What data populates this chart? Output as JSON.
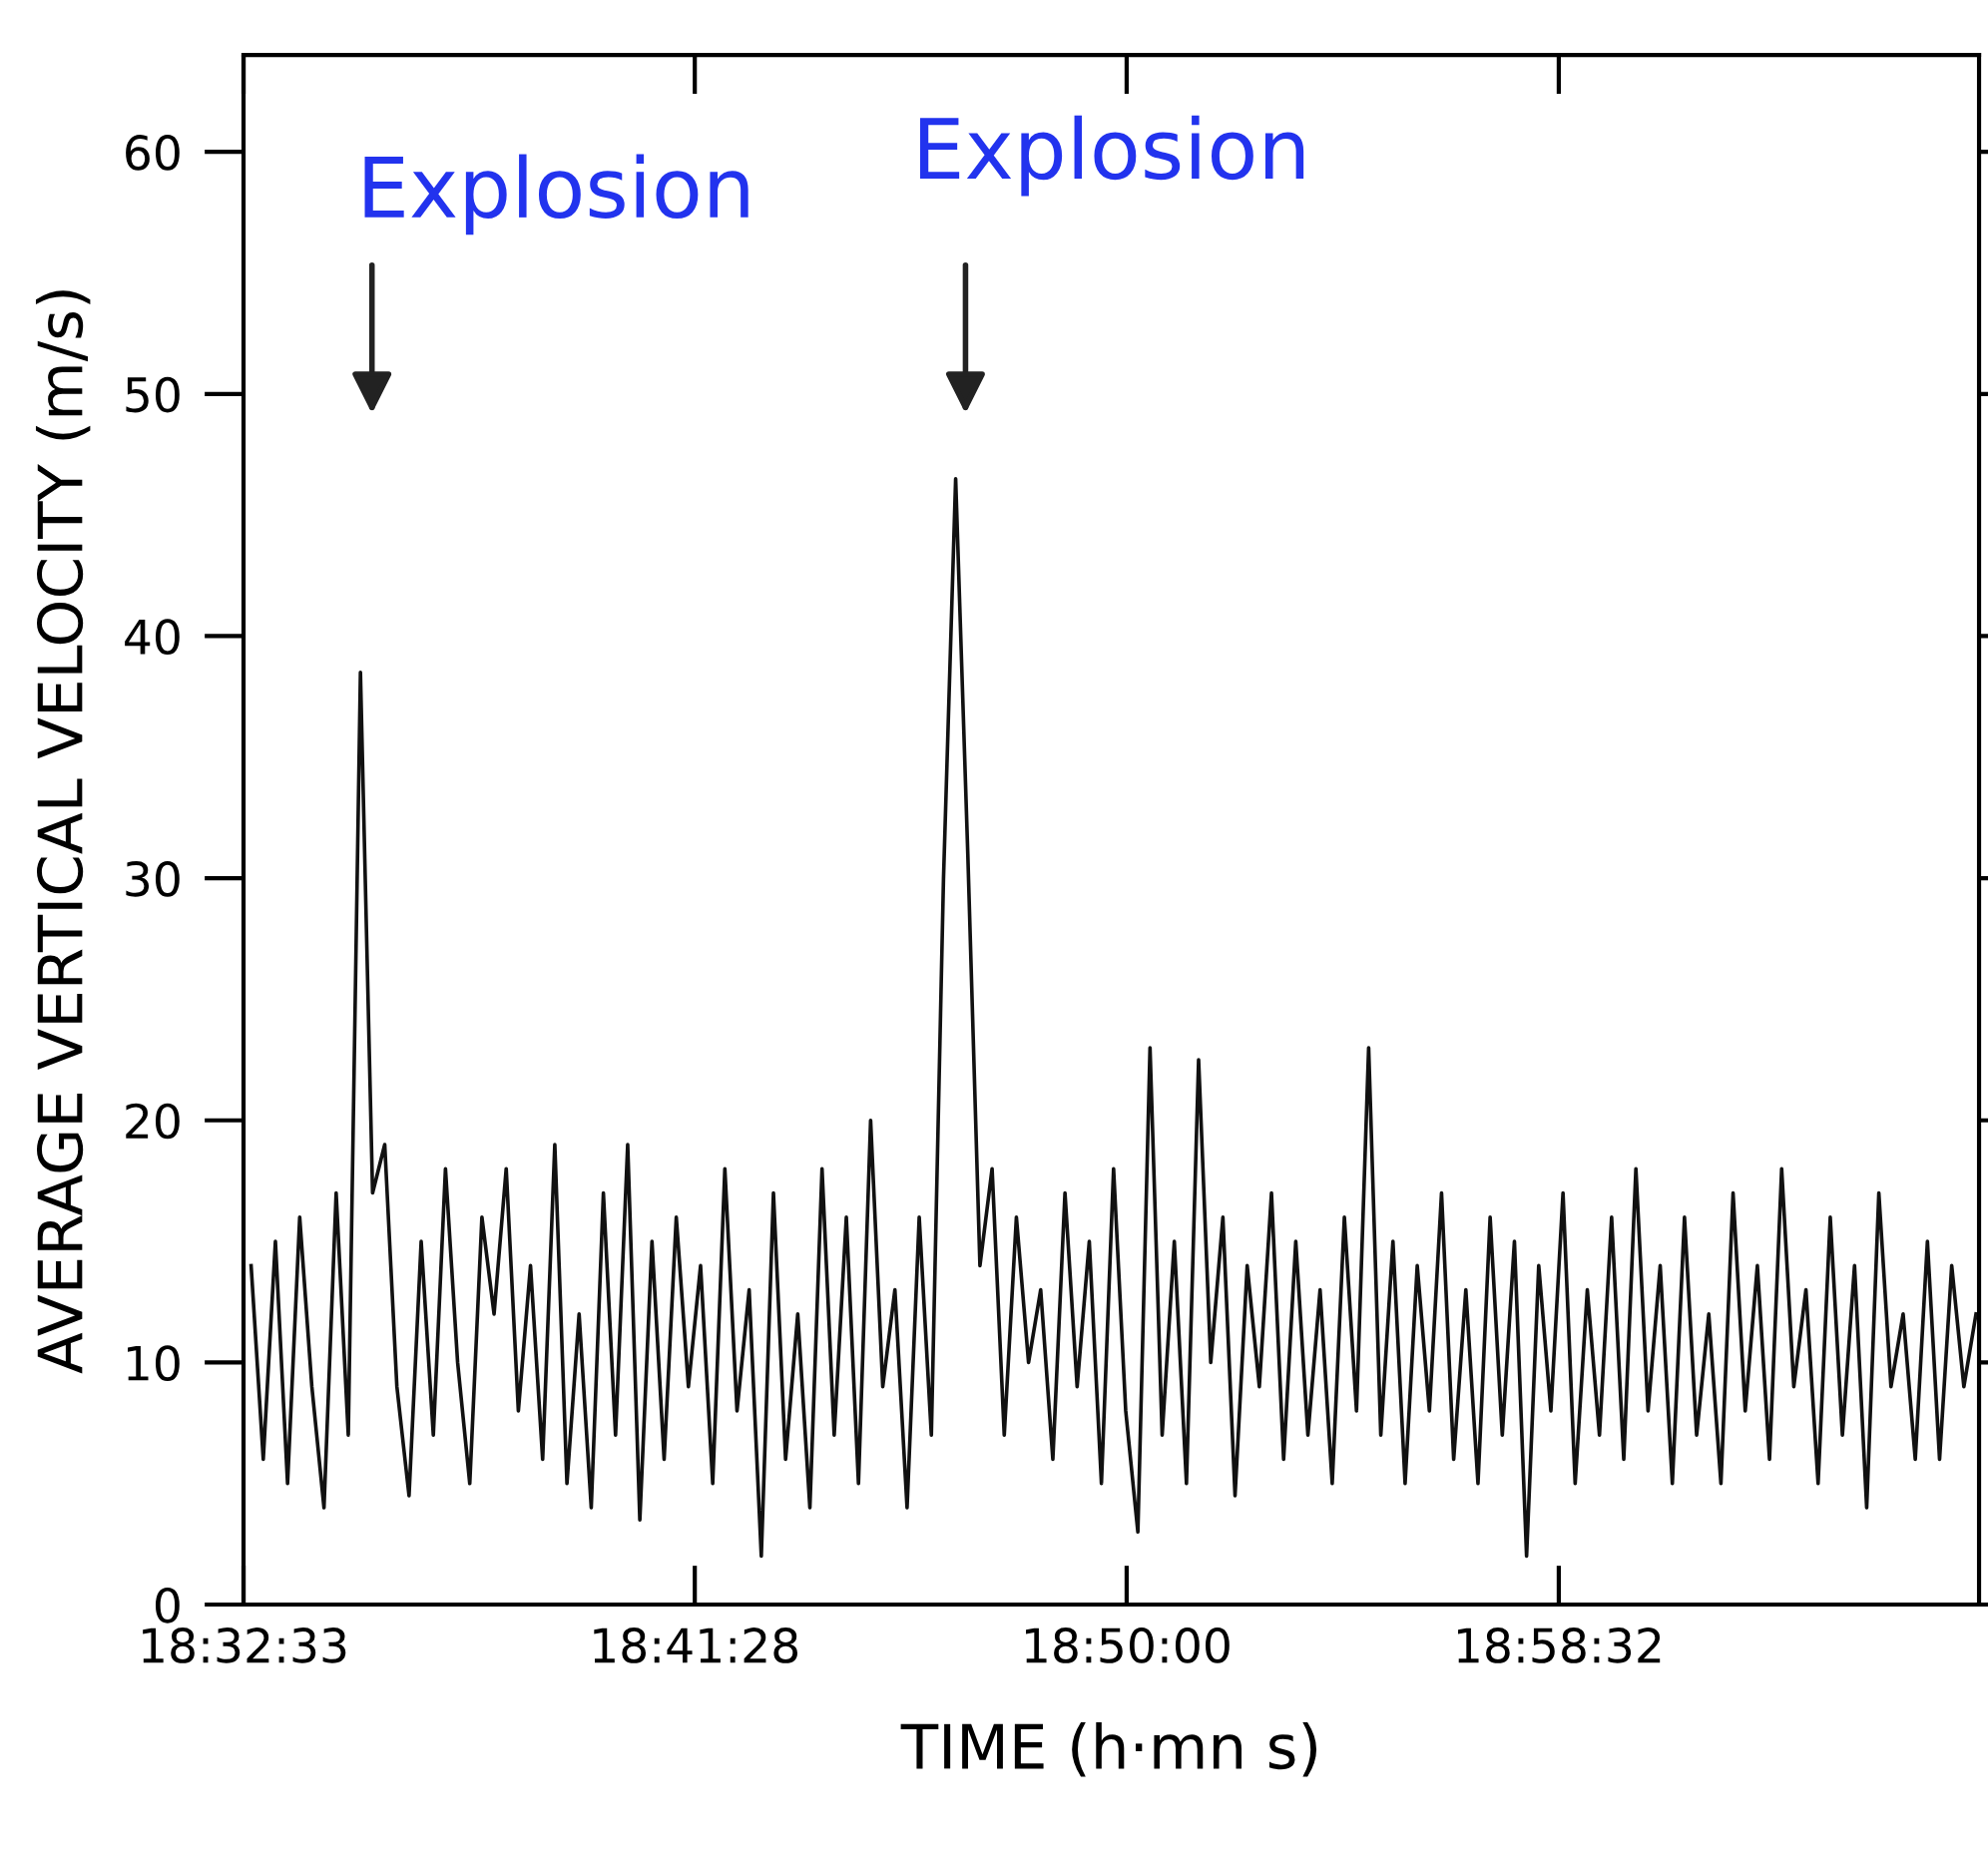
{
  "chart_data": {
    "type": "line",
    "xlabel": "TIME (h·mn s)",
    "ylabel": "AVERAGE VERTICAL VELOCITY (m/s)",
    "xlim": [
      18.5425,
      19.114
    ],
    "ylim": [
      0,
      64
    ],
    "xticks": [
      {
        "value": 18.5425,
        "label": "18:32:33"
      },
      {
        "value": 18.6911,
        "label": "18:41:28"
      },
      {
        "value": 18.8333,
        "label": "18:50:00"
      },
      {
        "value": 18.9756,
        "label": "18:58:32"
      }
    ],
    "yticks": [
      0,
      10,
      20,
      30,
      40,
      50,
      60
    ],
    "grid": false,
    "marker": "none",
    "line_style": "solid",
    "annotations": [
      "Explosion",
      "Explosion"
    ],
    "series": [
      {
        "color": "#111111",
        "x": [
          18.545,
          18.549,
          18.553,
          18.557,
          18.561,
          18.565,
          18.569,
          18.573,
          18.577,
          18.581,
          18.585,
          18.589,
          18.593,
          18.597,
          18.601,
          18.605,
          18.609,
          18.613,
          18.617,
          18.621,
          18.625,
          18.629,
          18.633,
          18.637,
          18.641,
          18.645,
          18.649,
          18.653,
          18.657,
          18.661,
          18.665,
          18.669,
          18.673,
          18.677,
          18.681,
          18.685,
          18.689,
          18.693,
          18.697,
          18.701,
          18.705,
          18.709,
          18.713,
          18.717,
          18.721,
          18.725,
          18.729,
          18.733,
          18.737,
          18.741,
          18.745,
          18.749,
          18.753,
          18.757,
          18.761,
          18.765,
          18.769,
          18.773,
          18.777,
          18.781,
          18.785,
          18.789,
          18.793,
          18.797,
          18.801,
          18.805,
          18.809,
          18.813,
          18.817,
          18.821,
          18.825,
          18.829,
          18.833,
          18.837,
          18.841,
          18.845,
          18.849,
          18.853,
          18.857,
          18.861,
          18.865,
          18.869,
          18.873,
          18.877,
          18.881,
          18.885,
          18.889,
          18.893,
          18.897,
          18.901,
          18.905,
          18.909,
          18.913,
          18.917,
          18.921,
          18.925,
          18.929,
          18.933,
          18.937,
          18.941,
          18.945,
          18.949,
          18.953,
          18.957,
          18.961,
          18.965,
          18.969,
          18.973,
          18.977,
          18.981,
          18.985,
          18.989,
          18.993,
          18.997,
          19.001,
          19.005,
          19.009,
          19.013,
          19.017,
          19.021,
          19.025,
          19.029,
          19.033,
          19.037,
          19.041,
          19.045,
          19.049,
          19.053,
          19.057,
          19.061,
          19.065,
          19.069,
          19.073,
          19.077,
          19.081,
          19.085,
          19.089,
          19.093,
          19.097,
          19.101,
          19.105,
          19.109,
          19.113
        ],
        "values": [
          14,
          6,
          15,
          5,
          16,
          9,
          4,
          17,
          7,
          38.5,
          17,
          19,
          9,
          4.5,
          15,
          7,
          18,
          10,
          5,
          16,
          12,
          18,
          8,
          14,
          6,
          19,
          5,
          12,
          4,
          17,
          7,
          19,
          3.5,
          15,
          6,
          16,
          9,
          14,
          5,
          18,
          8,
          13,
          2,
          17,
          6,
          12,
          4,
          18,
          7,
          16,
          5,
          20,
          9,
          13,
          4,
          16,
          7,
          30,
          46.5,
          31,
          14,
          18,
          7,
          16,
          10,
          13,
          6,
          17,
          9,
          15,
          5,
          18,
          8,
          3,
          23,
          7,
          15,
          5,
          22.5,
          10,
          16,
          4.5,
          14,
          9,
          17,
          6,
          15,
          7,
          13,
          5,
          16,
          8,
          23,
          7,
          15,
          5,
          14,
          8,
          17,
          6,
          13,
          5,
          16,
          7,
          15,
          2,
          14,
          8,
          17,
          5,
          13,
          7,
          16,
          6,
          18,
          8,
          14,
          5,
          16,
          7,
          12,
          5,
          17,
          8,
          14,
          6,
          18,
          9,
          13,
          5,
          16,
          7,
          14,
          4,
          17,
          9,
          12,
          6,
          15,
          6,
          14,
          9,
          12
        ]
      }
    ]
  }
}
